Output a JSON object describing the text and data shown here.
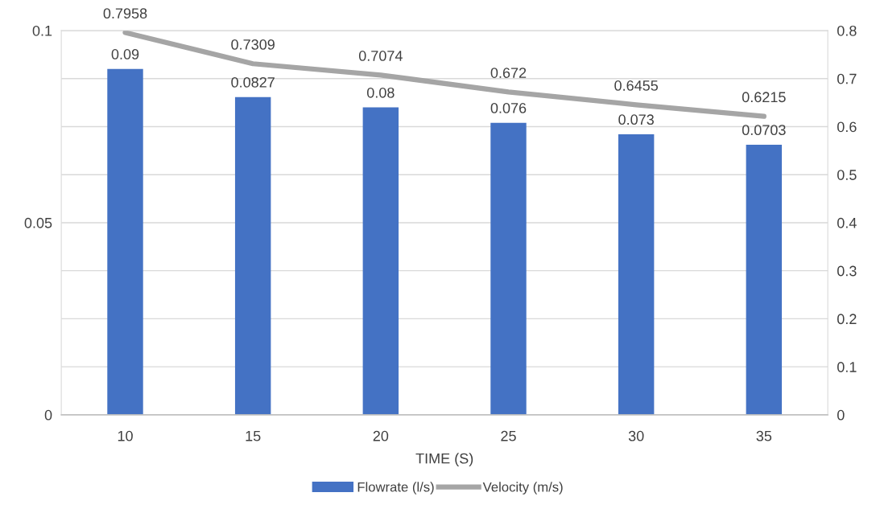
{
  "chart_data": {
    "type": "bar",
    "xlabel": "TIME (S)",
    "categories": [
      "10",
      "15",
      "20",
      "25",
      "30",
      "35"
    ],
    "series": [
      {
        "name": "Flowrate (l/s)",
        "color": "#4472c4",
        "values": [
          0.09,
          0.0827,
          0.08,
          0.076,
          0.073,
          0.0703
        ]
      },
      {
        "name": "Velocity (m/s)",
        "type": "line",
        "axis": "y2",
        "color": "#a5a5a5",
        "values": [
          0.7958,
          0.7309,
          0.7074,
          0.672,
          0.6455,
          0.6215
        ]
      }
    ],
    "ylim": [
      0,
      0.1
    ],
    "yticks": [
      0,
      {
        "value": 0.0125,
        "label": null
      },
      {
        "value": 0.025,
        "label": null
      },
      {
        "value": 0.0375,
        "label": null
      },
      0.05,
      {
        "value": 0.0625,
        "label": null
      },
      {
        "value": 0.075,
        "label": null
      },
      {
        "value": 0.0875,
        "label": null
      },
      0.1
    ],
    "y2lim": [
      0,
      0.8
    ],
    "y2ticks": [
      0,
      0.1,
      0.2,
      0.3,
      0.4,
      0.5,
      0.6,
      0.7,
      0.8
    ],
    "grid": "y",
    "legend": "bottom",
    "data_labels": true,
    "marker": "none",
    "line_style": "solid"
  }
}
